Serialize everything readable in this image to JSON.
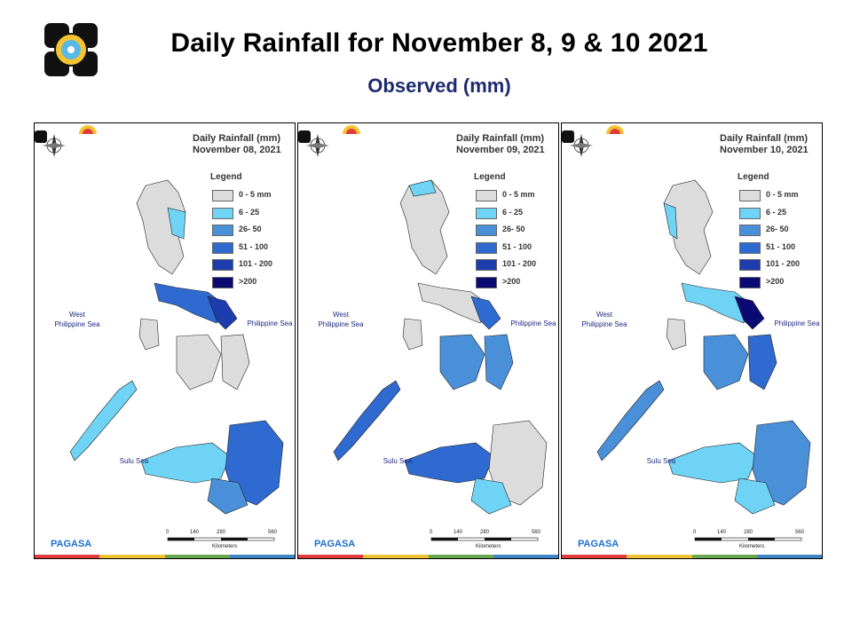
{
  "header": {
    "title": "Daily Rainfall for November 8, 9 & 10  2021",
    "subtitle": "Observed (mm)"
  },
  "legend": {
    "heading": "Legend",
    "classes": [
      {
        "label": "0 - 5 mm",
        "color": "#dcdcdc"
      },
      {
        "label": "6 - 25",
        "color": "#6fd3f5"
      },
      {
        "label": "26- 50",
        "color": "#4a90d9"
      },
      {
        "label": "51 - 100",
        "color": "#2f6ad0"
      },
      {
        "label": "101 - 200",
        "color": "#1d3cae"
      },
      {
        "label": ">200",
        "color": "#0b0a73"
      }
    ]
  },
  "maps": [
    {
      "title_line1": "Daily Rainfall (mm)",
      "title_line2": "November 08, 2021"
    },
    {
      "title_line1": "Daily Rainfall (mm)",
      "title_line2": "November 09, 2021"
    },
    {
      "title_line1": "Daily Rainfall (mm)",
      "title_line2": "November 10, 2021"
    }
  ],
  "labels": {
    "west_sea_line1": "West",
    "west_sea_line2": "Philippine Sea",
    "philippine_sea": "Philippine Sea",
    "sulu_sea": "Sulu Sea",
    "compass_n": "N",
    "compass_s": "S",
    "compass_w": "W",
    "compass_e": "E",
    "scale_ticks": [
      "0",
      "140",
      "280",
      "560"
    ],
    "scale_unit": "Kilometers",
    "agency": "PAGASA",
    "agency_tag": "DOST"
  },
  "colors": {
    "title": "#000000",
    "subtitle": "#1f2a6e",
    "strip": [
      "#e23b3b",
      "#f1c232",
      "#6aa84f",
      "#3d85c6"
    ]
  }
}
